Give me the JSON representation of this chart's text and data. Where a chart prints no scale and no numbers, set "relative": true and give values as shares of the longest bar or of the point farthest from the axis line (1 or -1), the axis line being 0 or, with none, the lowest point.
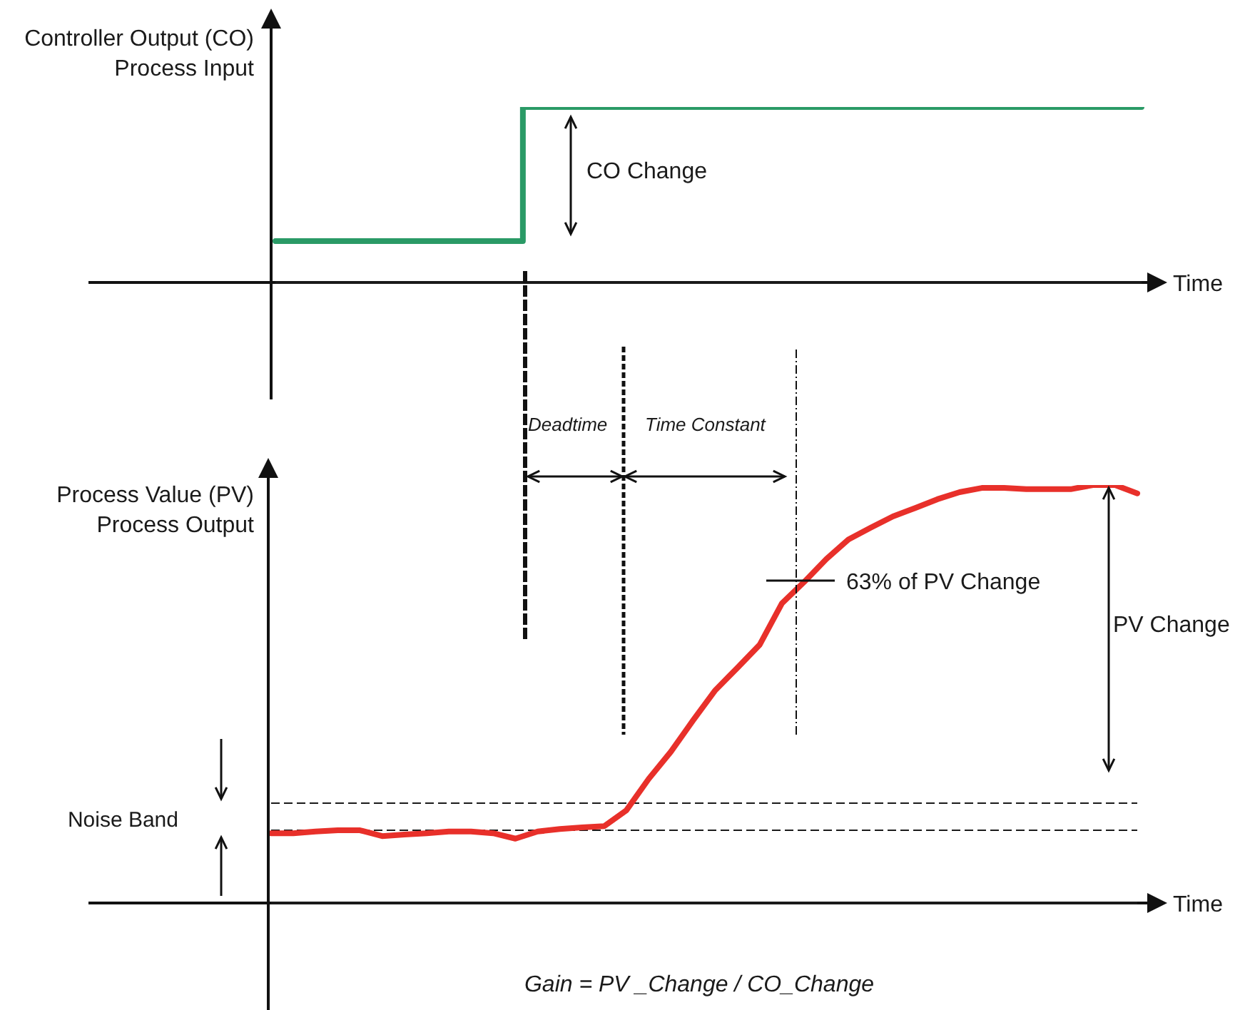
{
  "chart_data": [
    {
      "type": "step",
      "ylabel": "Controller Output (CO)\nProcess Input",
      "xlabel": "Time",
      "relative": true,
      "color": "#2a9a66",
      "categories": [
        null,
        null,
        null,
        null,
        null,
        null,
        null,
        null,
        null,
        null,
        null,
        null,
        null,
        null,
        null,
        null,
        null,
        null,
        null,
        null,
        null,
        null,
        null,
        null,
        null,
        null,
        null,
        null,
        null,
        null,
        null,
        null,
        null,
        null,
        null,
        null
      ],
      "values": [
        0.236,
        0.236,
        0.236,
        0.236,
        0.236,
        0.236,
        0.236,
        0.236,
        0.236,
        0.236,
        1,
        1,
        1,
        1,
        1,
        1,
        1,
        1,
        1,
        1,
        1,
        1,
        1,
        1,
        1,
        1,
        1,
        1,
        1,
        1,
        1,
        1,
        1,
        1,
        1,
        1
      ],
      "annotations": [
        "CO Change"
      ]
    },
    {
      "type": "line",
      "ylabel": "Process Value (PV)\nProcess Output",
      "xlabel": "Time",
      "relative": true,
      "color": "#e8302a",
      "categories": [
        null,
        null,
        null,
        null,
        null,
        null,
        null,
        null,
        null,
        null,
        null,
        null,
        null,
        null,
        null,
        null,
        null,
        null,
        null,
        null,
        null,
        null,
        null,
        null,
        null,
        null,
        null,
        null,
        null,
        null,
        null,
        null,
        null,
        null,
        null,
        null,
        null,
        null,
        null,
        null
      ],
      "values": [
        0.167,
        0.167,
        0.171,
        0.174,
        0.174,
        0.16,
        0.164,
        0.167,
        0.171,
        0.171,
        0.167,
        0.154,
        0.171,
        0.177,
        0.181,
        0.184,
        0.222,
        0.297,
        0.362,
        0.437,
        0.509,
        0.563,
        0.618,
        0.717,
        0.768,
        0.823,
        0.87,
        0.898,
        0.925,
        0.945,
        0.966,
        0.983,
        0.993,
        0.993,
        0.99,
        0.99,
        0.99,
        1,
        1,
        0.98
      ],
      "ref_lines": [
        {
          "axis": "y",
          "value": 0.239,
          "line_style": "dashed"
        },
        {
          "axis": "y",
          "value": 0.174,
          "line_style": "dashed",
          "label": "Noise Band"
        }
      ],
      "annotations": [
        "Deadtime",
        "Time Constant",
        "63% of PV Change",
        "PV Change",
        "Gain = PV _Change / CO_Change"
      ]
    }
  ]
}
